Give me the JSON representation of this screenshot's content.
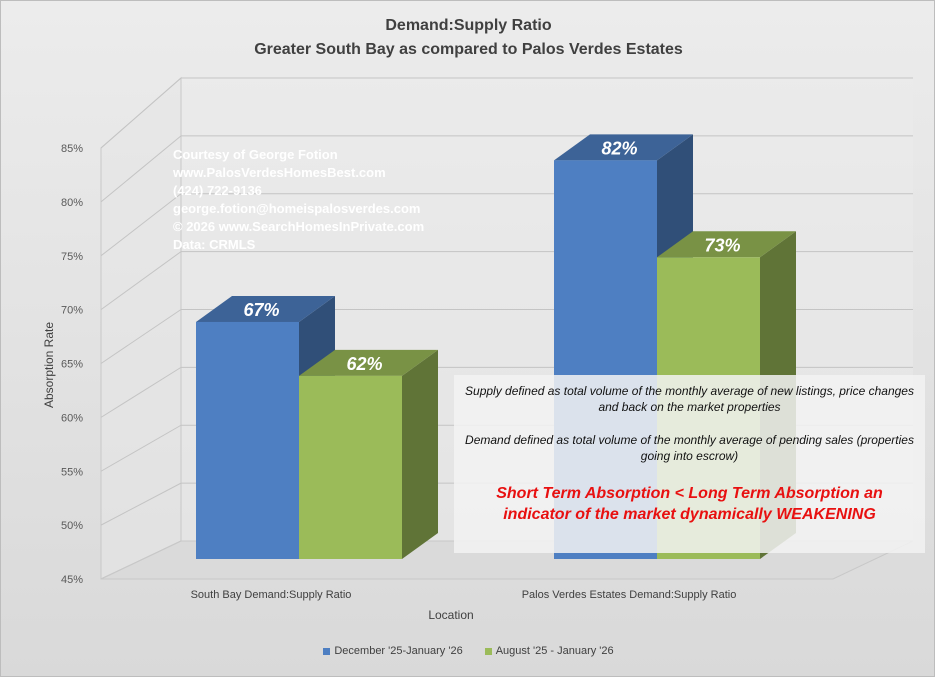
{
  "title_line1": "Demand:Supply Ratio",
  "title_line2": "Greater South Bay as compared to Palos Verdes Estates",
  "credits": [
    "Courtesy of George Fotion",
    "www.PalosVerdesHomesBest.com",
    "(424) 722-9136",
    "george.fotion@homeispalosverdes.com",
    "© 2026 www.SearchHomesInPrivate.com",
    "Data: CRMLS"
  ],
  "notes": {
    "supply": "Supply defined as total volume of the monthly average of new listings, price changes and back on the market properties",
    "demand": "Demand defined as total volume of the monthly average of pending sales (properties going into escrow)",
    "headline": "Short Term Absorption < Long Term Absorption an indicator of the market dynamically WEAKENING"
  },
  "colors": {
    "series1": "#4e7fc2",
    "series2": "#9bbb59",
    "headline": "#e81010"
  },
  "chart_data": {
    "type": "bar",
    "title": "Demand:Supply Ratio",
    "subtitle": "Greater South Bay as compared to Palos Verdes Estates",
    "xlabel": "Location",
    "ylabel": "Absorption Rate",
    "categories": [
      "South Bay Demand:Supply Ratio",
      "Palos Verdes Estates Demand:Supply Ratio"
    ],
    "series": [
      {
        "name": "December '25-January '26",
        "values": [
          67,
          82
        ],
        "labels": [
          "67%",
          "82%"
        ]
      },
      {
        "name": "August '25 - January '26",
        "values": [
          62,
          73
        ],
        "labels": [
          "62%",
          "73%"
        ]
      }
    ],
    "ylim": [
      45,
      85
    ],
    "yticks": [
      45,
      50,
      55,
      60,
      65,
      70,
      75,
      80,
      85
    ],
    "ytick_labels": [
      "45%",
      "50%",
      "55%",
      "60%",
      "65%",
      "70%",
      "75%",
      "80%",
      "85%"
    ],
    "grid": true,
    "legend": "bottom",
    "three_d": true
  }
}
